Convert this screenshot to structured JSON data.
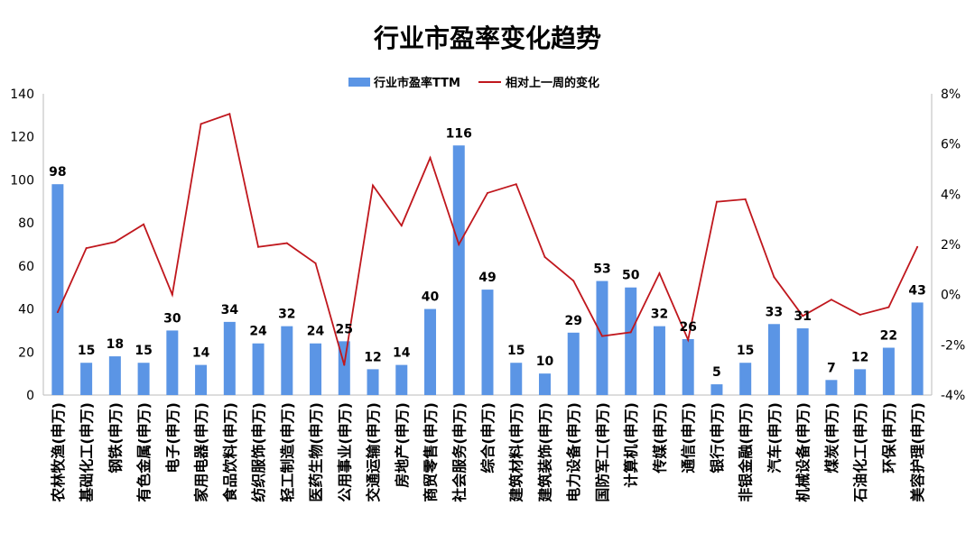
{
  "chart_data": {
    "type": "bar+line",
    "title": "行业市盈率变化趋势",
    "legend": [
      "行业市盈率TTM",
      "相对上一周的变化"
    ],
    "legend_position": "top",
    "colors": {
      "bar": "#5b95e5",
      "line": "#c0171d"
    },
    "categories": [
      "农林牧渔(申万)",
      "基础化工(申万)",
      "钢铁(申万)",
      "有色金属(申万)",
      "电子(申万)",
      "家用电器(申万)",
      "食品饮料(申万)",
      "纺织服饰(申万)",
      "轻工制造(申万)",
      "医药生物(申万)",
      "公用事业(申万)",
      "交通运输(申万)",
      "房地产(申万)",
      "商贸零售(申万)",
      "社会服务(申万)",
      "综合(申万)",
      "建筑材料(申万)",
      "建筑装饰(申万)",
      "电力设备(申万)",
      "国防军工(申万)",
      "计算机(申万)",
      "传媒(申万)",
      "通信(申万)",
      "银行(申万)",
      "非银金融(申万)",
      "汽车(申万)",
      "机械设备(申万)",
      "煤炭(申万)",
      "石油化工(申万)",
      "环保(申万)",
      "美容护理(申万)"
    ],
    "series": [
      {
        "name": "行业市盈率TTM",
        "axis": "left",
        "type": "bar",
        "values": [
          98,
          15,
          18,
          15,
          30,
          14,
          34,
          24,
          32,
          24,
          25,
          12,
          14,
          40,
          116,
          49,
          15,
          10,
          29,
          53,
          50,
          32,
          26,
          5,
          15,
          33,
          31,
          7,
          12,
          22,
          43
        ]
      },
      {
        "name": "相对上一周的变化",
        "axis": "right",
        "type": "line",
        "unit": "%",
        "values": [
          -0.7,
          1.85,
          2.1,
          2.8,
          0.0,
          6.8,
          7.2,
          1.9,
          2.05,
          1.25,
          -2.8,
          4.35,
          2.75,
          5.45,
          2.0,
          4.05,
          4.4,
          1.5,
          0.55,
          -1.65,
          -1.5,
          0.85,
          -1.8,
          3.7,
          3.8,
          0.7,
          -0.85,
          -0.2,
          -0.8,
          -0.5,
          1.9
        ]
      }
    ],
    "ylim_left": [
      0,
      140
    ],
    "yticks_left": [
      "0",
      "20",
      "40",
      "60",
      "80",
      "100",
      "120",
      "140"
    ],
    "ylim_right": [
      -4,
      8
    ],
    "yticks_right": [
      "-4%",
      "-2%",
      "0%",
      "2%",
      "4%",
      "6%",
      "8%"
    ],
    "grid": false
  }
}
